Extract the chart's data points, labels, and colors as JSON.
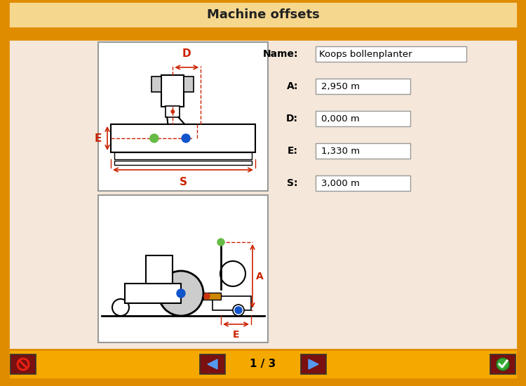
{
  "title": "Machine offsets",
  "title_bg": "#f5d78e",
  "main_bg": "#f5e8da",
  "border_color": "#e08c00",
  "name_label": "Name:",
  "name_value": "Koops bollenplanter",
  "fields": [
    {
      "label": "A:",
      "value": "2,950 m"
    },
    {
      "label": "D:",
      "value": "0,000 m"
    },
    {
      "label": "E:",
      "value": "1,330 m"
    },
    {
      "label": "S:",
      "value": "3,000 m"
    }
  ],
  "page_text": "1 / 3",
  "bottom_bar_color": "#f5a800",
  "btn_bg": "#7a1010",
  "box_bg": "#ffffff",
  "box_border": "#999999",
  "red_color": "#cc2200",
  "green_dot": "#66bb44",
  "blue_dot": "#1155cc",
  "red_dot": "#cc3311",
  "gray_fill": "#cccccc"
}
